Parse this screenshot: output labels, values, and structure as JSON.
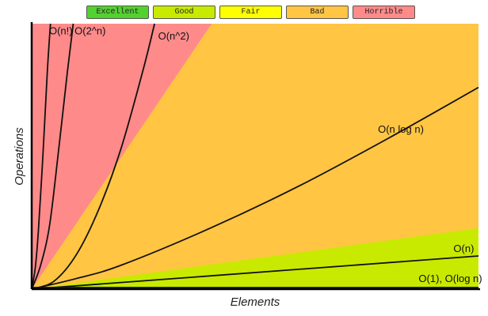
{
  "chart_data": {
    "type": "area",
    "xlabel": "Elements",
    "ylabel": "Operations",
    "xlim": [
      0,
      100
    ],
    "ylim": [
      0,
      100
    ],
    "grid": false,
    "legend_position": "top-center",
    "legend": [
      {
        "label": "Excellent",
        "color": "#53d12f"
      },
      {
        "label": "Good",
        "color": "#c8ea00"
      },
      {
        "label": "Fair",
        "color": "#ffff00"
      },
      {
        "label": "Bad",
        "color": "#ffc543"
      },
      {
        "label": "Horrible",
        "color": "#ff8a8a"
      }
    ],
    "regions": [
      {
        "rating": "Horrible",
        "color": "#ff8a8a",
        "boundary_y_at_x100": 100
      },
      {
        "rating": "Bad",
        "color": "#ffc543",
        "boundary_y_at_x100": 100
      },
      {
        "rating": "Good",
        "color": "#c8ea00",
        "boundary_y_at_x100": 23
      },
      {
        "rating": "Excellent",
        "color": "#53d12f",
        "boundary_y_at_x100": 0
      }
    ],
    "series": [
      {
        "name": "O(n!)",
        "x": [
          0,
          0.8,
          1.5,
          2.5,
          3.5,
          4.2
        ],
        "y": [
          0,
          8,
          22,
          50,
          82,
          100
        ]
      },
      {
        "name": "O(2^n)",
        "x": [
          0,
          2,
          4,
          6,
          8,
          9.3
        ],
        "y": [
          0,
          9,
          24,
          52,
          82,
          100
        ]
      },
      {
        "name": "O(n^2)",
        "x": [
          0,
          5,
          10,
          15,
          20,
          25,
          27.5
        ],
        "y": [
          0,
          3,
          13,
          30,
          53,
          83,
          100
        ]
      },
      {
        "name": "O(n log n)",
        "x": [
          0,
          10,
          20,
          40,
          60,
          80,
          100
        ],
        "y": [
          0,
          4,
          9,
          23,
          39,
          57,
          76
        ]
      },
      {
        "name": "O(n)",
        "x": [
          0,
          100
        ],
        "y": [
          0,
          12.5
        ]
      },
      {
        "name": "O(1), O(log n)",
        "x": [
          0,
          100
        ],
        "y": [
          0.6,
          0.6
        ]
      }
    ]
  }
}
